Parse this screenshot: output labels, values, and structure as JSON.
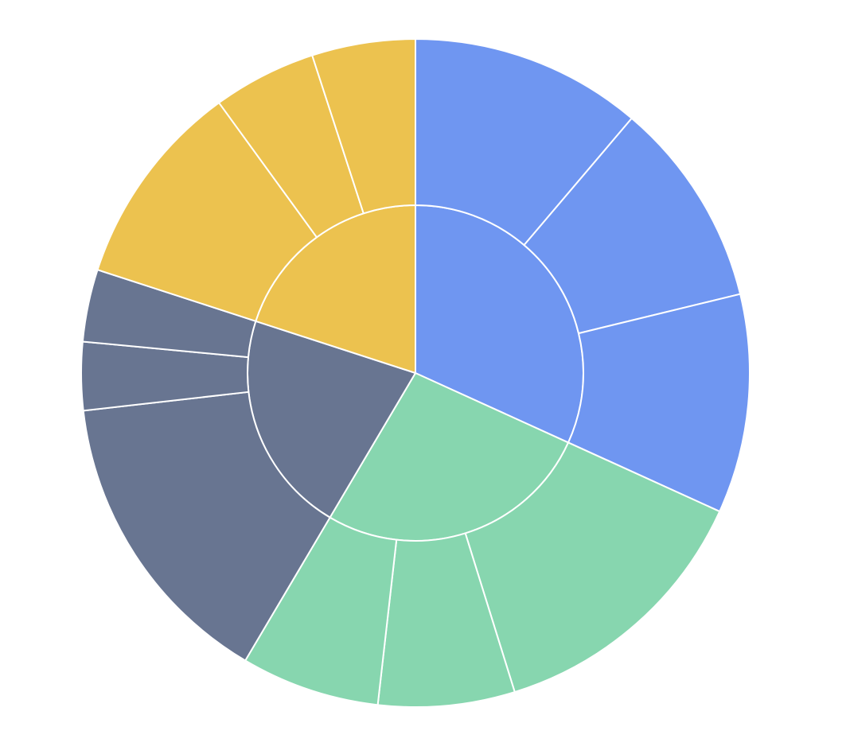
{
  "chart_data": {
    "type": "sunburst",
    "title": "",
    "groups": [
      {
        "color": "#6f96f1",
        "value": 31.8,
        "children": [
          {
            "value": 11.2
          },
          {
            "value": 10.0
          },
          {
            "value": 10.6
          }
        ]
      },
      {
        "color": "#87d6af",
        "value": 26.7,
        "children": [
          {
            "value": 13.4
          },
          {
            "value": 6.6
          },
          {
            "value": 6.7
          }
        ]
      },
      {
        "color": "#687591",
        "value": 21.5,
        "children": [
          {
            "value": 14.7
          },
          {
            "value": 3.3
          },
          {
            "value": 3.5
          }
        ]
      },
      {
        "color": "#ecc24f",
        "value": 20.0,
        "children": [
          {
            "value": 10.0
          },
          {
            "value": 5.0
          },
          {
            "value": 5.0
          }
        ]
      }
    ]
  }
}
